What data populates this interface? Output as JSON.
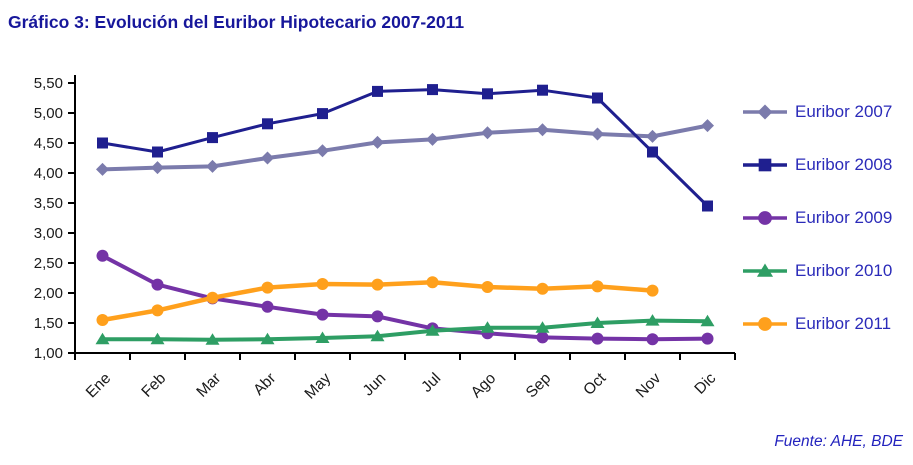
{
  "source": {
    "text": "Fuente: AHE, BDE",
    "color": "#2323BE"
  },
  "colors": {
    "title": "#17179B",
    "legend_text": "#2B2BB9",
    "axis": "#000000",
    "axis_labels": "#1A1A1A",
    "background": "#FFFFFF"
  },
  "chart_data": {
    "type": "line",
    "title": "Gráfico 3: Evolución del Euribor Hipotecario 2007-2011",
    "categories": [
      "Ene",
      "Feb",
      "Mar",
      "Abr",
      "May",
      "Jun",
      "Jul",
      "Ago",
      "Sep",
      "Oct",
      "Nov",
      "Dic"
    ],
    "xlabel": "",
    "ylabel": "",
    "ylim": [
      1.0,
      5.5
    ],
    "y_tick_step": 0.5,
    "y_tick_labels": [
      "1,00",
      "1,50",
      "2,00",
      "2,50",
      "3,00",
      "3,50",
      "4,00",
      "4,50",
      "5,00",
      "5,50"
    ],
    "grid": false,
    "legend_position": "right",
    "series": [
      {
        "name": "Euribor 2007",
        "color": "#7B7BAC",
        "marker": "diamond",
        "line_width": 4,
        "values": [
          4.06,
          4.09,
          4.11,
          4.25,
          4.37,
          4.51,
          4.56,
          4.67,
          4.72,
          4.65,
          4.61,
          4.79
        ]
      },
      {
        "name": "Euribor 2008",
        "color": "#1F1F8F",
        "marker": "square",
        "line_width": 3,
        "values": [
          4.5,
          4.35,
          4.59,
          4.82,
          4.99,
          5.36,
          5.39,
          5.32,
          5.38,
          5.25,
          4.35,
          3.45
        ]
      },
      {
        "name": "Euribor 2009",
        "color": "#7433A6",
        "marker": "circle",
        "line_width": 4,
        "values": [
          2.62,
          2.14,
          1.91,
          1.77,
          1.64,
          1.61,
          1.41,
          1.33,
          1.26,
          1.24,
          1.23,
          1.24
        ]
      },
      {
        "name": "Euribor 2010",
        "color": "#2E9E64",
        "marker": "triangle",
        "line_width": 4,
        "values": [
          1.23,
          1.23,
          1.22,
          1.23,
          1.25,
          1.28,
          1.37,
          1.42,
          1.42,
          1.5,
          1.54,
          1.53
        ]
      },
      {
        "name": "Euribor 2011",
        "color": "#FFA01C",
        "marker": "circle",
        "line_width": 4.5,
        "values": [
          1.55,
          1.71,
          1.92,
          2.09,
          2.15,
          2.14,
          2.18,
          2.1,
          2.07,
          2.11,
          2.04
        ]
      }
    ]
  }
}
